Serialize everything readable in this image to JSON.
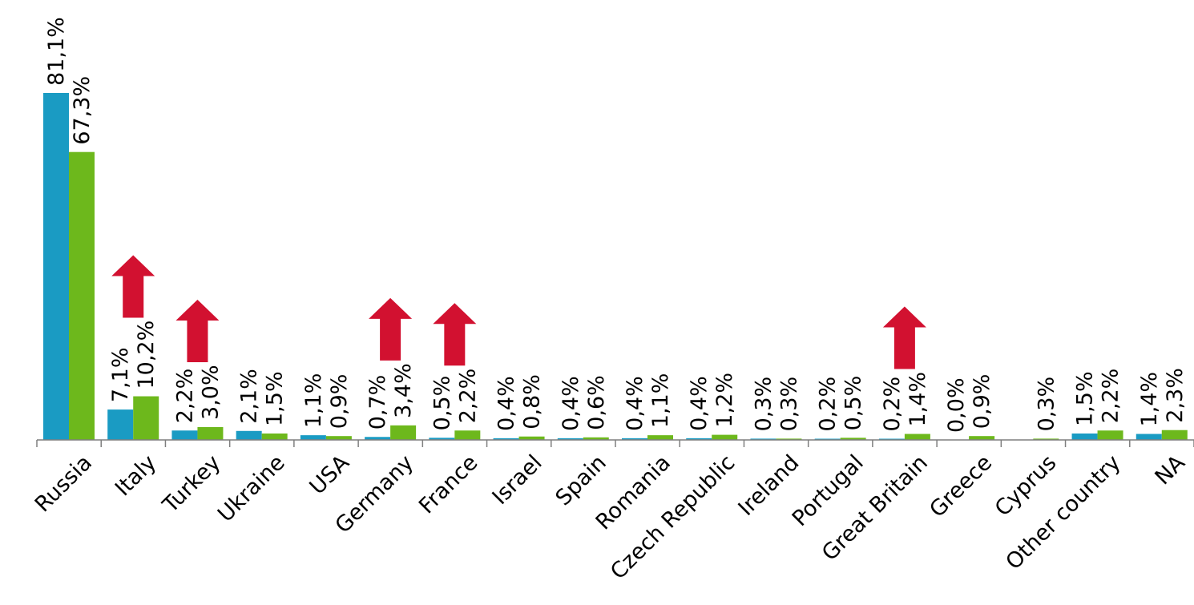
{
  "chart_data": {
    "type": "bar",
    "categories": [
      "Russia",
      "Italy",
      "Turkey",
      "Ukraine",
      "USA",
      "Germany",
      "France",
      "Israel",
      "Spain",
      "Romania",
      "Czech Republic",
      "Ireland",
      "Portugal",
      "Great Britain",
      "Greece",
      "Cyprus",
      "Other country",
      "NA"
    ],
    "series": [
      {
        "color": "#1a9bc3",
        "values": [
          81.1,
          7.1,
          2.2,
          2.1,
          1.1,
          0.7,
          0.5,
          0.4,
          0.4,
          0.4,
          0.4,
          0.3,
          0.2,
          0.2,
          0.0,
          null,
          1.5,
          1.4
        ],
        "labels": [
          "81,1%",
          "7,1%",
          "2,2%",
          "2,1%",
          "1,1%",
          "0,7%",
          "0,5%",
          "0,4%",
          "0,4%",
          "0,4%",
          "0,4%",
          "0,3%",
          "0,2%",
          "0,2%",
          "0,0%",
          "",
          "1,5%",
          "1,4%"
        ]
      },
      {
        "color": "#6db81c",
        "values": [
          67.3,
          10.2,
          3.0,
          1.5,
          0.9,
          3.4,
          2.2,
          0.8,
          0.6,
          1.1,
          1.2,
          0.3,
          0.5,
          1.4,
          0.9,
          0.3,
          2.2,
          2.3
        ],
        "labels": [
          "67,3%",
          "10,2%",
          "3,0%",
          "1,5%",
          "0,9%",
          "3,4%",
          "2,2%",
          "0,8%",
          "0,6%",
          "1,1%",
          "1,2%",
          "0,3%",
          "0,5%",
          "1,4%",
          "0,9%",
          "0,3%",
          "2,2%",
          "2,3%"
        ]
      }
    ],
    "ylim": [
      0,
      81.1
    ],
    "gridlines": false,
    "legend": "none",
    "annotations": {
      "icon": "up-arrow-icon",
      "color": "#d21130",
      "categories": [
        "Italy",
        "Turkey",
        "Germany",
        "France",
        "Great Britain"
      ]
    }
  }
}
